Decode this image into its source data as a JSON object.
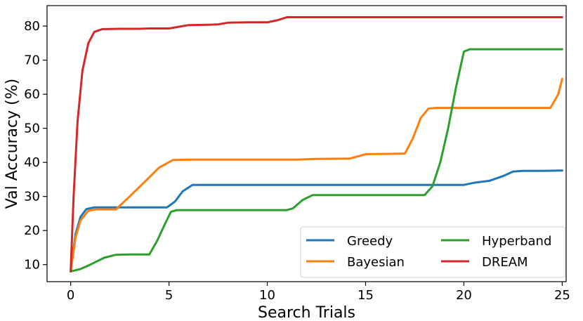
{
  "chart_data": {
    "type": "line",
    "xlabel": "Search Trials",
    "ylabel": "Val Accuracy (%)",
    "xlim": [
      -1.2,
      25.2
    ],
    "ylim": [
      5,
      86
    ],
    "xticks": [
      0,
      5,
      10,
      15,
      20,
      25
    ],
    "yticks": [
      10,
      20,
      30,
      40,
      50,
      60,
      70,
      80
    ],
    "grid": false,
    "legend": {
      "placement": "lower-right",
      "columns": 2
    },
    "series": [
      {
        "name": "Greedy",
        "color": "#1f77b4",
        "points": [
          [
            0,
            8
          ],
          [
            0.25,
            19
          ],
          [
            0.5,
            24
          ],
          [
            0.8,
            26.3
          ],
          [
            1.2,
            26.8
          ],
          [
            2,
            26.8
          ],
          [
            3,
            26.8
          ],
          [
            4,
            26.8
          ],
          [
            4.9,
            26.8
          ],
          [
            5.3,
            28.5
          ],
          [
            5.7,
            31.5
          ],
          [
            6.2,
            33.4
          ],
          [
            7,
            33.4
          ],
          [
            10,
            33.4
          ],
          [
            15,
            33.4
          ],
          [
            20,
            33.4
          ],
          [
            20.5,
            34
          ],
          [
            21.3,
            34.6
          ],
          [
            22,
            36
          ],
          [
            22.5,
            37.3
          ],
          [
            23,
            37.5
          ],
          [
            24,
            37.5
          ],
          [
            25,
            37.6
          ]
        ]
      },
      {
        "name": "Bayesian",
        "color": "#ff7f0e",
        "points": [
          [
            0,
            8
          ],
          [
            0.25,
            18
          ],
          [
            0.5,
            23
          ],
          [
            0.9,
            25.8
          ],
          [
            1.3,
            26.2
          ],
          [
            2.3,
            26.2
          ],
          [
            3,
            30
          ],
          [
            3.8,
            34.5
          ],
          [
            4.5,
            38.5
          ],
          [
            5.2,
            40.7
          ],
          [
            6,
            40.8
          ],
          [
            8,
            40.8
          ],
          [
            10,
            40.8
          ],
          [
            11.5,
            40.8
          ],
          [
            12.5,
            41
          ],
          [
            14.2,
            41.1
          ],
          [
            15,
            42.4
          ],
          [
            16,
            42.5
          ],
          [
            17,
            42.6
          ],
          [
            17.4,
            47
          ],
          [
            17.8,
            53
          ],
          [
            18.2,
            55.8
          ],
          [
            18.6,
            56
          ],
          [
            20,
            56
          ],
          [
            22,
            56
          ],
          [
            24.4,
            56
          ],
          [
            24.8,
            60
          ],
          [
            25,
            64.5
          ]
        ]
      },
      {
        "name": "Hyperband",
        "color": "#2ca02c",
        "points": [
          [
            0,
            8
          ],
          [
            0.5,
            8.7
          ],
          [
            1,
            10
          ],
          [
            1.7,
            12
          ],
          [
            2.3,
            12.9
          ],
          [
            3,
            13
          ],
          [
            4,
            13
          ],
          [
            4.4,
            17
          ],
          [
            4.8,
            22
          ],
          [
            5.1,
            25.5
          ],
          [
            5.4,
            26
          ],
          [
            6,
            26
          ],
          [
            8,
            26
          ],
          [
            10,
            26
          ],
          [
            11,
            26
          ],
          [
            11.3,
            26.5
          ],
          [
            11.8,
            29
          ],
          [
            12.3,
            30.4
          ],
          [
            13,
            30.4
          ],
          [
            15,
            30.4
          ],
          [
            17,
            30.4
          ],
          [
            18,
            30.4
          ],
          [
            18.4,
            33
          ],
          [
            18.8,
            40
          ],
          [
            19.2,
            50
          ],
          [
            19.6,
            62
          ],
          [
            20,
            72.5
          ],
          [
            20.3,
            73.2
          ],
          [
            22,
            73.2
          ],
          [
            25,
            73.2
          ]
        ]
      },
      {
        "name": "DREAM",
        "color": "#d62728",
        "points": [
          [
            0,
            8
          ],
          [
            0.15,
            30
          ],
          [
            0.35,
            52
          ],
          [
            0.6,
            67
          ],
          [
            0.9,
            75
          ],
          [
            1.2,
            78.3
          ],
          [
            1.6,
            79.1
          ],
          [
            2.5,
            79.2
          ],
          [
            3.5,
            79.2
          ],
          [
            4,
            79.3
          ],
          [
            5,
            79.3
          ],
          [
            5.5,
            79.8
          ],
          [
            6,
            80.3
          ],
          [
            7,
            80.4
          ],
          [
            7.5,
            80.5
          ],
          [
            8,
            81
          ],
          [
            9,
            81.1
          ],
          [
            10,
            81.1
          ],
          [
            10.5,
            81.7
          ],
          [
            11,
            82.6
          ],
          [
            12,
            82.6
          ],
          [
            15,
            82.6
          ],
          [
            20,
            82.6
          ],
          [
            25,
            82.6
          ]
        ]
      }
    ]
  }
}
